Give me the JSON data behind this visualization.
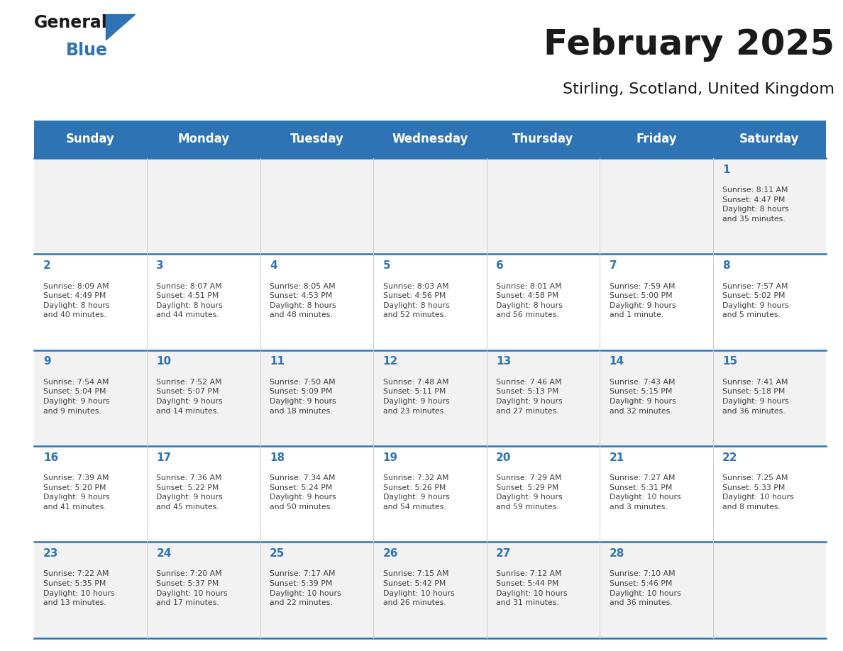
{
  "title": "February 2025",
  "subtitle": "Stirling, Scotland, United Kingdom",
  "header_color": "#2E74B5",
  "header_text_color": "#FFFFFF",
  "day_names": [
    "Sunday",
    "Monday",
    "Tuesday",
    "Wednesday",
    "Thursday",
    "Friday",
    "Saturday"
  ],
  "background_color": "#FFFFFF",
  "cell_bg_even": "#F2F2F2",
  "cell_bg_odd": "#FFFFFF",
  "separator_color": "#2E74B5",
  "day_number_color": "#2E74B5",
  "text_color": "#404040",
  "calendar_data": [
    [
      null,
      null,
      null,
      null,
      null,
      null,
      1
    ],
    [
      2,
      3,
      4,
      5,
      6,
      7,
      8
    ],
    [
      9,
      10,
      11,
      12,
      13,
      14,
      15
    ],
    [
      16,
      17,
      18,
      19,
      20,
      21,
      22
    ],
    [
      23,
      24,
      25,
      26,
      27,
      28,
      null
    ]
  ],
  "sunrise_data": {
    "1": "Sunrise: 8:11 AM\nSunset: 4:47 PM\nDaylight: 8 hours\nand 35 minutes.",
    "2": "Sunrise: 8:09 AM\nSunset: 4:49 PM\nDaylight: 8 hours\nand 40 minutes.",
    "3": "Sunrise: 8:07 AM\nSunset: 4:51 PM\nDaylight: 8 hours\nand 44 minutes.",
    "4": "Sunrise: 8:05 AM\nSunset: 4:53 PM\nDaylight: 8 hours\nand 48 minutes.",
    "5": "Sunrise: 8:03 AM\nSunset: 4:56 PM\nDaylight: 8 hours\nand 52 minutes.",
    "6": "Sunrise: 8:01 AM\nSunset: 4:58 PM\nDaylight: 8 hours\nand 56 minutes.",
    "7": "Sunrise: 7:59 AM\nSunset: 5:00 PM\nDaylight: 9 hours\nand 1 minute.",
    "8": "Sunrise: 7:57 AM\nSunset: 5:02 PM\nDaylight: 9 hours\nand 5 minutes.",
    "9": "Sunrise: 7:54 AM\nSunset: 5:04 PM\nDaylight: 9 hours\nand 9 minutes.",
    "10": "Sunrise: 7:52 AM\nSunset: 5:07 PM\nDaylight: 9 hours\nand 14 minutes.",
    "11": "Sunrise: 7:50 AM\nSunset: 5:09 PM\nDaylight: 9 hours\nand 18 minutes.",
    "12": "Sunrise: 7:48 AM\nSunset: 5:11 PM\nDaylight: 9 hours\nand 23 minutes.",
    "13": "Sunrise: 7:46 AM\nSunset: 5:13 PM\nDaylight: 9 hours\nand 27 minutes.",
    "14": "Sunrise: 7:43 AM\nSunset: 5:15 PM\nDaylight: 9 hours\nand 32 minutes.",
    "15": "Sunrise: 7:41 AM\nSunset: 5:18 PM\nDaylight: 9 hours\nand 36 minutes.",
    "16": "Sunrise: 7:39 AM\nSunset: 5:20 PM\nDaylight: 9 hours\nand 41 minutes.",
    "17": "Sunrise: 7:36 AM\nSunset: 5:22 PM\nDaylight: 9 hours\nand 45 minutes.",
    "18": "Sunrise: 7:34 AM\nSunset: 5:24 PM\nDaylight: 9 hours\nand 50 minutes.",
    "19": "Sunrise: 7:32 AM\nSunset: 5:26 PM\nDaylight: 9 hours\nand 54 minutes.",
    "20": "Sunrise: 7:29 AM\nSunset: 5:29 PM\nDaylight: 9 hours\nand 59 minutes.",
    "21": "Sunrise: 7:27 AM\nSunset: 5:31 PM\nDaylight: 10 hours\nand 3 minutes.",
    "22": "Sunrise: 7:25 AM\nSunset: 5:33 PM\nDaylight: 10 hours\nand 8 minutes.",
    "23": "Sunrise: 7:22 AM\nSunset: 5:35 PM\nDaylight: 10 hours\nand 13 minutes.",
    "24": "Sunrise: 7:20 AM\nSunset: 5:37 PM\nDaylight: 10 hours\nand 17 minutes.",
    "25": "Sunrise: 7:17 AM\nSunset: 5:39 PM\nDaylight: 10 hours\nand 22 minutes.",
    "26": "Sunrise: 7:15 AM\nSunset: 5:42 PM\nDaylight: 10 hours\nand 26 minutes.",
    "27": "Sunrise: 7:12 AM\nSunset: 5:44 PM\nDaylight: 10 hours\nand 31 minutes.",
    "28": "Sunrise: 7:10 AM\nSunset: 5:46 PM\nDaylight: 10 hours\nand 36 minutes."
  },
  "logo_text_general": "General",
  "logo_text_blue": "Blue",
  "logo_color_general": "#1a1a1a",
  "logo_color_blue": "#2E74B5",
  "logo_triangle_color": "#2E74B5"
}
